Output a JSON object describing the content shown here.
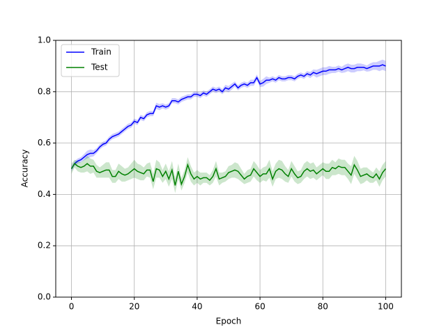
{
  "chart_data": {
    "type": "line",
    "xlabel": "Epoch",
    "ylabel": "Accuracy",
    "xlim": [
      -5,
      105
    ],
    "ylim": [
      0,
      1
    ],
    "xticks": [
      0,
      20,
      40,
      60,
      80,
      100
    ],
    "yticks": [
      {
        "value": 0,
        "label": "0.0"
      },
      0.2,
      0.4,
      0.6,
      0.8,
      {
        "value": 1,
        "label": "1.0"
      }
    ],
    "grid": true,
    "legend": "upper left",
    "x": [
      0,
      1,
      2,
      3,
      4,
      5,
      6,
      7,
      8,
      9,
      10,
      11,
      12,
      13,
      14,
      15,
      16,
      17,
      18,
      19,
      20,
      21,
      22,
      23,
      24,
      25,
      26,
      27,
      28,
      29,
      30,
      31,
      32,
      33,
      34,
      35,
      36,
      37,
      38,
      39,
      40,
      41,
      42,
      43,
      44,
      45,
      46,
      47,
      48,
      49,
      50,
      51,
      52,
      53,
      54,
      55,
      56,
      57,
      58,
      59,
      60,
      61,
      62,
      63,
      64,
      65,
      66,
      67,
      68,
      69,
      70,
      71,
      72,
      73,
      74,
      75,
      76,
      77,
      78,
      79,
      80,
      81,
      82,
      83,
      84,
      85,
      86,
      87,
      88,
      89,
      90,
      91,
      92,
      93,
      94,
      95,
      96,
      97,
      98,
      99,
      100
    ],
    "series": [
      {
        "name": "Train",
        "color": "#0000ff",
        "values": [
          0.5,
          0.52,
          0.53,
          0.535,
          0.545,
          0.555,
          0.56,
          0.56,
          0.57,
          0.585,
          0.595,
          0.6,
          0.615,
          0.625,
          0.63,
          0.635,
          0.645,
          0.655,
          0.665,
          0.67,
          0.685,
          0.68,
          0.7,
          0.695,
          0.71,
          0.715,
          0.715,
          0.745,
          0.74,
          0.745,
          0.74,
          0.745,
          0.765,
          0.765,
          0.76,
          0.77,
          0.775,
          0.78,
          0.78,
          0.79,
          0.79,
          0.785,
          0.795,
          0.79,
          0.8,
          0.81,
          0.805,
          0.81,
          0.8,
          0.815,
          0.81,
          0.82,
          0.83,
          0.815,
          0.825,
          0.83,
          0.825,
          0.835,
          0.835,
          0.855,
          0.83,
          0.835,
          0.845,
          0.845,
          0.85,
          0.845,
          0.855,
          0.85,
          0.85,
          0.855,
          0.855,
          0.85,
          0.86,
          0.865,
          0.86,
          0.87,
          0.865,
          0.875,
          0.87,
          0.875,
          0.88,
          0.88,
          0.885,
          0.885,
          0.885,
          0.89,
          0.885,
          0.89,
          0.895,
          0.89,
          0.89,
          0.895,
          0.895,
          0.895,
          0.89,
          0.895,
          0.9,
          0.9,
          0.9,
          0.905,
          0.9
        ],
        "band": [
          0.01,
          0.01,
          0.01,
          0.01,
          0.012,
          0.015,
          0.015,
          0.012,
          0.01,
          0.01,
          0.01,
          0.01,
          0.01,
          0.01,
          0.01,
          0.01,
          0.01,
          0.01,
          0.01,
          0.01,
          0.01,
          0.01,
          0.01,
          0.01,
          0.01,
          0.01,
          0.01,
          0.012,
          0.012,
          0.01,
          0.01,
          0.01,
          0.01,
          0.01,
          0.01,
          0.01,
          0.01,
          0.01,
          0.01,
          0.01,
          0.01,
          0.01,
          0.01,
          0.01,
          0.01,
          0.01,
          0.01,
          0.01,
          0.01,
          0.012,
          0.012,
          0.012,
          0.01,
          0.01,
          0.01,
          0.01,
          0.01,
          0.012,
          0.012,
          0.012,
          0.012,
          0.015,
          0.015,
          0.01,
          0.01,
          0.01,
          0.01,
          0.01,
          0.01,
          0.01,
          0.01,
          0.01,
          0.01,
          0.01,
          0.01,
          0.01,
          0.012,
          0.012,
          0.015,
          0.015,
          0.015,
          0.015,
          0.015,
          0.012,
          0.012,
          0.012,
          0.012,
          0.015,
          0.015,
          0.015,
          0.015,
          0.015,
          0.015,
          0.012,
          0.012,
          0.015,
          0.015,
          0.015,
          0.02,
          0.02,
          0.02
        ]
      },
      {
        "name": "Test",
        "color": "#008000",
        "values": [
          0.5,
          0.52,
          0.51,
          0.505,
          0.51,
          0.52,
          0.51,
          0.51,
          0.49,
          0.485,
          0.49,
          0.495,
          0.495,
          0.47,
          0.47,
          0.49,
          0.48,
          0.475,
          0.48,
          0.49,
          0.5,
          0.49,
          0.485,
          0.48,
          0.495,
          0.495,
          0.45,
          0.5,
          0.495,
          0.47,
          0.49,
          0.46,
          0.495,
          0.435,
          0.49,
          0.44,
          0.47,
          0.515,
          0.48,
          0.46,
          0.47,
          0.46,
          0.465,
          0.465,
          0.455,
          0.47,
          0.5,
          0.46,
          0.465,
          0.47,
          0.485,
          0.49,
          0.495,
          0.49,
          0.475,
          0.46,
          0.47,
          0.475,
          0.5,
          0.485,
          0.47,
          0.48,
          0.48,
          0.5,
          0.46,
          0.49,
          0.5,
          0.495,
          0.48,
          0.47,
          0.5,
          0.48,
          0.465,
          0.47,
          0.49,
          0.5,
          0.49,
          0.495,
          0.48,
          0.49,
          0.5,
          0.49,
          0.49,
          0.505,
          0.5,
          0.51,
          0.505,
          0.505,
          0.49,
          0.475,
          0.515,
          0.495,
          0.47,
          0.475,
          0.48,
          0.47,
          0.465,
          0.48,
          0.46,
          0.485,
          0.5
        ],
        "band": [
          0.02,
          0.015,
          0.02,
          0.02,
          0.025,
          0.03,
          0.03,
          0.025,
          0.025,
          0.02,
          0.025,
          0.03,
          0.03,
          0.025,
          0.025,
          0.03,
          0.03,
          0.025,
          0.025,
          0.03,
          0.035,
          0.03,
          0.03,
          0.025,
          0.025,
          0.03,
          0.03,
          0.035,
          0.03,
          0.025,
          0.03,
          0.03,
          0.035,
          0.03,
          0.03,
          0.025,
          0.025,
          0.03,
          0.03,
          0.025,
          0.025,
          0.025,
          0.02,
          0.02,
          0.02,
          0.025,
          0.03,
          0.025,
          0.02,
          0.02,
          0.025,
          0.025,
          0.03,
          0.03,
          0.025,
          0.02,
          0.025,
          0.025,
          0.03,
          0.03,
          0.025,
          0.025,
          0.03,
          0.035,
          0.03,
          0.03,
          0.035,
          0.035,
          0.03,
          0.025,
          0.03,
          0.03,
          0.025,
          0.025,
          0.03,
          0.03,
          0.03,
          0.03,
          0.025,
          0.025,
          0.025,
          0.03,
          0.03,
          0.03,
          0.025,
          0.03,
          0.03,
          0.03,
          0.03,
          0.035,
          0.035,
          0.035,
          0.03,
          0.03,
          0.025,
          0.025,
          0.02,
          0.025,
          0.03,
          0.03,
          0.03
        ]
      }
    ]
  }
}
